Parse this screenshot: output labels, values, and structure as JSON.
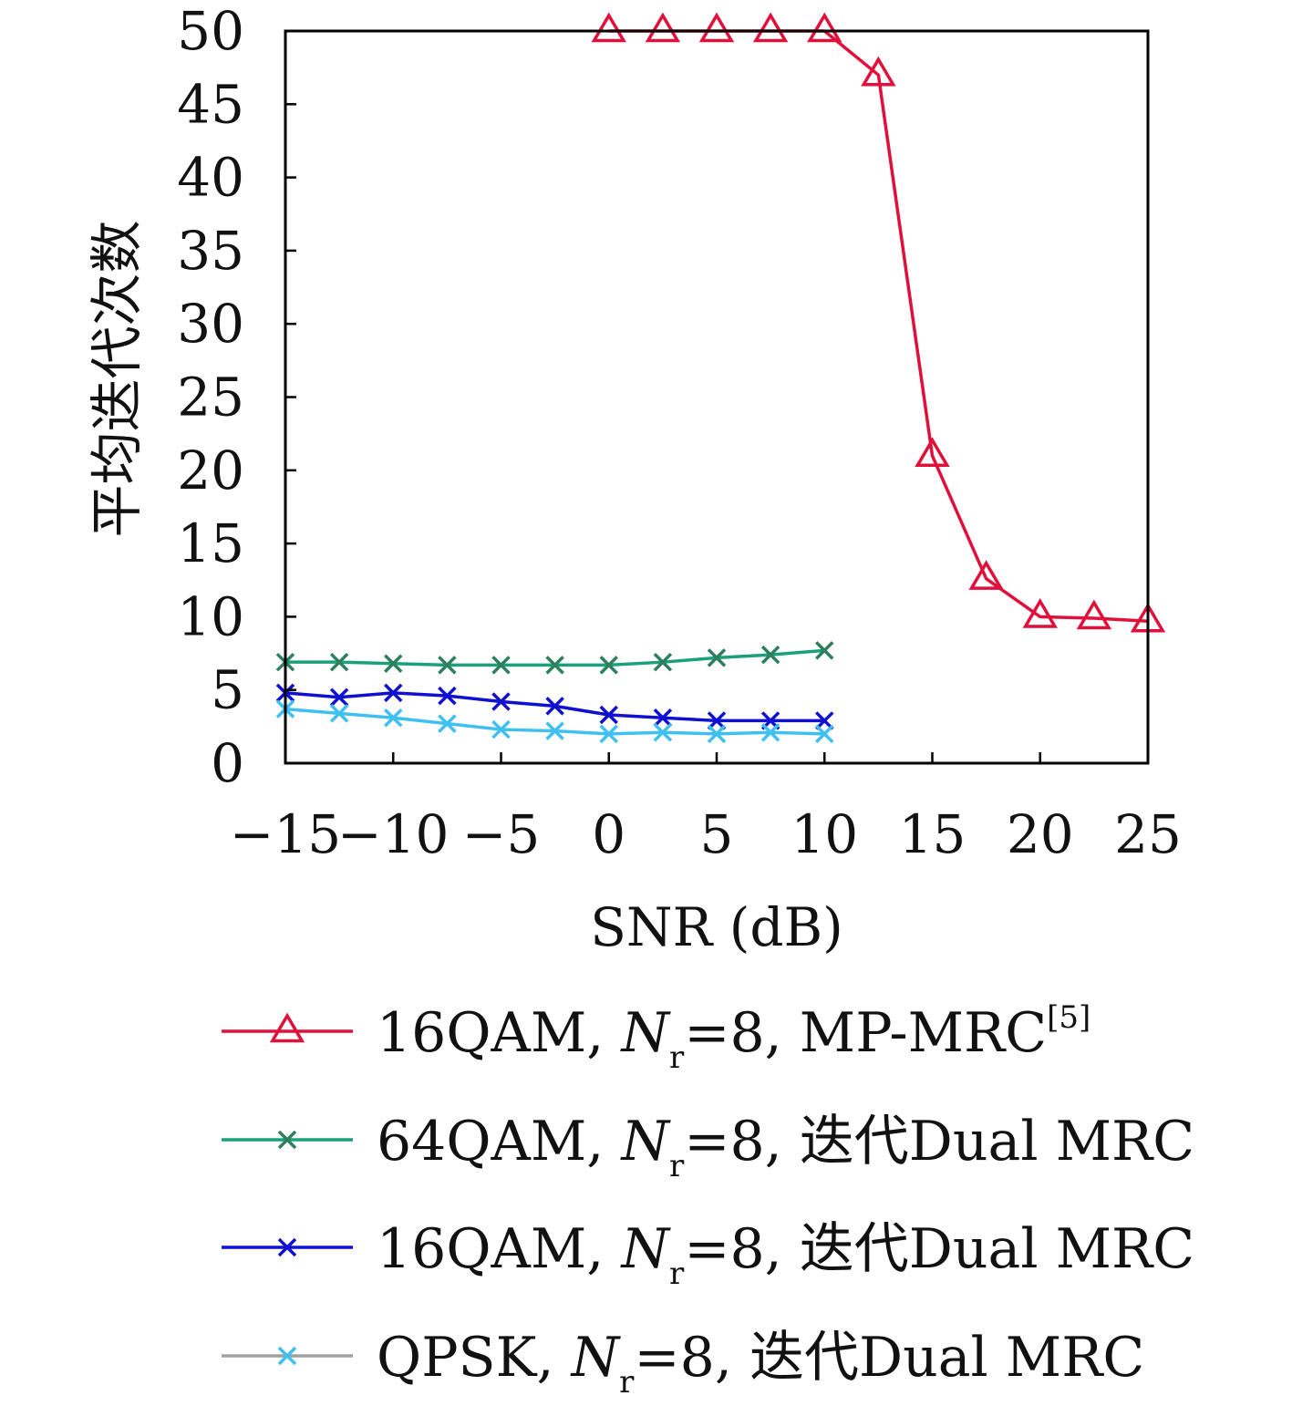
{
  "chart_data": {
    "type": "line",
    "xlabel": "SNR (dB)",
    "ylabel": "平均迭代次数",
    "xlim": [
      -15,
      25
    ],
    "ylim": [
      0,
      50
    ],
    "xticks": [
      "−15",
      "−10",
      "−5",
      "0",
      "5",
      "10",
      "15",
      "20",
      "25"
    ],
    "yticks": [
      "0",
      "5",
      "10",
      "15",
      "20",
      "25",
      "30",
      "35",
      "40",
      "45",
      "50"
    ],
    "grid": false,
    "legend_position": "below",
    "series": [
      {
        "legend": {
          "pre": "16QAM, ",
          "N": "N",
          "sub": "r",
          "post": "=8, MP-MRC",
          "sup": "[5]"
        },
        "color": "#e0103a",
        "line_color": "#e0103a",
        "marker": "triangle",
        "x": [
          0,
          2.5,
          5,
          7.5,
          10,
          12.5,
          15,
          17.5,
          20,
          22.5,
          25
        ],
        "y": [
          50,
          50,
          50,
          50,
          50,
          47,
          21,
          12.6,
          10,
          9.9,
          9.7
        ]
      },
      {
        "legend": {
          "pre": "64QAM, ",
          "N": "N",
          "sub": "r",
          "post": "=8, 迭代Dual MRC",
          "sup": ""
        },
        "color": "#2f7f5f",
        "line_color": "#1aa07a",
        "marker": "x",
        "x": [
          -15,
          -12.5,
          -10,
          -7.5,
          -5,
          -2.5,
          0,
          2.5,
          5,
          7.5,
          10
        ],
        "y": [
          6.9,
          6.9,
          6.8,
          6.7,
          6.7,
          6.7,
          6.7,
          6.9,
          7.2,
          7.4,
          7.7
        ]
      },
      {
        "legend": {
          "pre": "16QAM, ",
          "N": "N",
          "sub": "r",
          "post": "=8, 迭代Dual MRC",
          "sup": ""
        },
        "color": "#1010d0",
        "line_color": "#1010d0",
        "marker": "x",
        "x": [
          -15,
          -12.5,
          -10,
          -7.5,
          -5,
          -2.5,
          0,
          2.5,
          5,
          7.5,
          10
        ],
        "y": [
          4.8,
          4.5,
          4.8,
          4.6,
          4.2,
          3.9,
          3.3,
          3.1,
          2.9,
          2.9,
          2.9
        ]
      },
      {
        "legend": {
          "pre": "QPSK, ",
          "N": "N",
          "sub": "r",
          "post": "=8, 迭代Dual MRC",
          "sup": ""
        },
        "color": "#40c0f0",
        "line_color": "#40c0f0",
        "legend_line_color": "#a0a0a0",
        "marker": "x",
        "x": [
          -15,
          -12.5,
          -10,
          -7.5,
          -5,
          -2.5,
          0,
          2.5,
          5,
          7.5,
          10
        ],
        "y": [
          3.7,
          3.4,
          3.1,
          2.7,
          2.3,
          2.2,
          2.0,
          2.1,
          2.0,
          2.1,
          2.0
        ]
      }
    ]
  }
}
